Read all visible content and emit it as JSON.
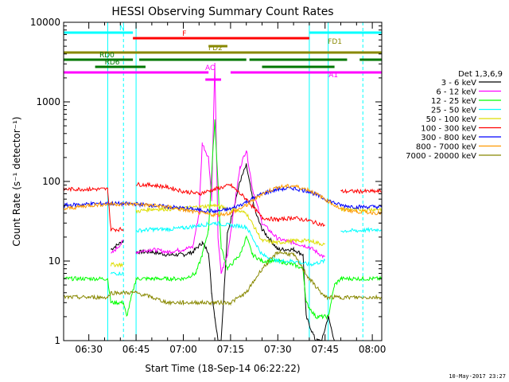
{
  "chart_data": {
    "type": "line",
    "title": "HESSI Observing Summary Count Rates",
    "xlabel": "Start Time (18-Sep-14 06:22:22)",
    "ylabel": "Count Rate (s⁻¹ detector⁻¹)",
    "yscale": "log",
    "ylim": [
      1,
      10000
    ],
    "xlim": [
      "06:22",
      "08:03"
    ],
    "x_ticks": [
      "06:30",
      "06:45",
      "07:00",
      "07:15",
      "07:30",
      "07:45",
      "08:00"
    ],
    "y_ticks": [
      "1",
      "10",
      "100",
      "1000",
      "10000"
    ],
    "legend_title": "Det 1,3,6,9",
    "legend_position": "right",
    "timestamp": "10-May-2017 23:27",
    "series": [
      {
        "name": "3 - 6 keV",
        "color": "#000000",
        "x": [
          "06:22",
          "06:36",
          "06:37",
          "06:41",
          "06:42",
          "06:45",
          "06:50",
          "06:55",
          "07:00",
          "07:03",
          "07:06",
          "07:08",
          "07:09",
          "07:10",
          "07:11",
          "07:12",
          "07:14",
          "07:18",
          "07:20",
          "07:22",
          "07:23",
          "07:25",
          "07:30",
          "07:35",
          "07:38",
          "07:39",
          "07:42",
          "07:44",
          "07:46",
          "07:48",
          "07:50",
          "07:55",
          "08:03"
        ],
        "y": [
          null,
          null,
          14,
          18,
          null,
          13,
          13,
          12,
          12,
          13,
          17,
          13,
          4,
          2,
          1,
          1,
          22,
          100,
          160,
          60,
          40,
          25,
          14,
          14,
          12,
          2,
          1,
          1,
          2,
          1,
          null,
          null,
          null
        ]
      },
      {
        "name": "6 - 12 keV",
        "color": "#ff00ff",
        "x": [
          "06:22",
          "06:36",
          "06:37",
          "06:41",
          "06:42",
          "06:45",
          "06:50",
          "06:55",
          "07:00",
          "07:03",
          "07:05",
          "07:06",
          "07:08",
          "07:09",
          "07:10",
          "07:11",
          "07:12",
          "07:14",
          "07:18",
          "07:20",
          "07:22",
          "07:25",
          "07:30",
          "07:35",
          "07:40",
          "07:45",
          "07:50",
          "07:55",
          "08:03"
        ],
        "y": [
          null,
          null,
          12,
          18,
          null,
          13,
          14,
          13,
          14,
          15,
          40,
          300,
          200,
          60,
          3000,
          20,
          7,
          12,
          150,
          250,
          80,
          30,
          19,
          17,
          15,
          11,
          null,
          null,
          null
        ]
      },
      {
        "name": "12 - 25 keV",
        "color": "#00ff00",
        "x": [
          "06:22",
          "06:36",
          "06:37",
          "06:41",
          "06:42",
          "06:45",
          "06:50",
          "06:55",
          "07:00",
          "07:04",
          "07:06",
          "07:08",
          "07:10",
          "07:12",
          "07:14",
          "07:18",
          "07:20",
          "07:22",
          "07:25",
          "07:30",
          "07:35",
          "07:38",
          "07:39",
          "07:42",
          "07:46",
          "07:48",
          "07:50",
          "07:55",
          "08:03"
        ],
        "y": [
          6,
          6,
          3,
          3,
          2,
          6,
          6,
          6,
          6,
          7,
          12,
          25,
          600,
          15,
          8,
          12,
          20,
          12,
          10,
          10,
          9,
          8,
          3,
          2,
          2,
          5,
          6,
          6,
          6
        ]
      },
      {
        "name": "25 - 50 keV",
        "color": "#00ffff",
        "x": [
          "06:22",
          "06:36",
          "06:37",
          "06:41",
          "06:42",
          "06:45",
          "06:50",
          "06:55",
          "07:00",
          "07:05",
          "07:10",
          "07:15",
          "07:20",
          "07:25",
          "07:30",
          "07:35",
          "07:40",
          "07:45",
          "07:46",
          "07:50",
          "07:55",
          "08:03"
        ],
        "y": [
          null,
          null,
          7,
          7,
          null,
          24,
          25,
          25,
          26,
          28,
          30,
          28,
          27,
          12,
          10,
          10,
          9,
          10,
          null,
          24,
          24,
          25
        ]
      },
      {
        "name": "50 - 100 keV",
        "color": "#dddd00",
        "x": [
          "06:22",
          "06:36",
          "06:37",
          "06:41",
          "06:42",
          "06:45",
          "06:50",
          "06:55",
          "07:00",
          "07:05",
          "07:10",
          "07:15",
          "07:20",
          "07:25",
          "07:30",
          "07:35",
          "07:40",
          "07:45",
          "07:46",
          "07:50",
          "07:55",
          "08:03"
        ],
        "y": [
          null,
          null,
          9,
          9,
          null,
          42,
          45,
          45,
          46,
          48,
          50,
          45,
          40,
          18,
          17,
          18,
          18,
          16,
          null,
          45,
          44,
          45
        ]
      },
      {
        "name": "100 - 300 keV",
        "color": "#ff0000",
        "x": [
          "06:22",
          "06:30",
          "06:36",
          "06:37",
          "06:41",
          "06:42",
          "06:45",
          "06:50",
          "06:55",
          "07:00",
          "07:05",
          "07:10",
          "07:15",
          "07:20",
          "07:25",
          "07:30",
          "07:35",
          "07:40",
          "07:45",
          "07:46",
          "07:50",
          "07:55",
          "08:03"
        ],
        "y": [
          80,
          80,
          80,
          25,
          25,
          null,
          92,
          90,
          85,
          75,
          70,
          80,
          90,
          60,
          35,
          33,
          35,
          32,
          28,
          null,
          75,
          75,
          75
        ]
      },
      {
        "name": "300 - 800 keV",
        "color": "#0000ff",
        "x": [
          "06:22",
          "06:30",
          "06:36",
          "06:45",
          "06:50",
          "06:55",
          "07:00",
          "07:05",
          "07:10",
          "07:15",
          "07:20",
          "07:25",
          "07:30",
          "07:35",
          "07:40",
          "07:45",
          "07:50",
          "07:55",
          "08:03"
        ],
        "y": [
          50,
          52,
          53,
          52,
          50,
          48,
          46,
          44,
          42,
          45,
          55,
          70,
          80,
          82,
          75,
          60,
          50,
          48,
          48
        ]
      },
      {
        "name": "800 - 7000 keV",
        "color": "#ff9900",
        "x": [
          "06:22",
          "06:30",
          "06:36",
          "06:45",
          "06:50",
          "06:55",
          "07:00",
          "07:05",
          "07:10",
          "07:15",
          "07:20",
          "07:25",
          "07:30",
          "07:35",
          "07:40",
          "07:45",
          "07:50",
          "07:55",
          "08:03"
        ],
        "y": [
          45,
          50,
          52,
          52,
          50,
          48,
          44,
          40,
          38,
          40,
          50,
          70,
          85,
          88,
          78,
          60,
          45,
          42,
          40
        ]
      },
      {
        "name": "7000 - 20000 keV",
        "color": "#888800",
        "x": [
          "06:22",
          "06:30",
          "06:36",
          "06:37",
          "06:45",
          "06:50",
          "06:55",
          "07:00",
          "07:05",
          "07:10",
          "07:15",
          "07:20",
          "07:25",
          "07:30",
          "07:35",
          "07:40",
          "07:45",
          "07:50",
          "07:55",
          "08:03"
        ],
        "y": [
          3.5,
          3.5,
          3.5,
          4,
          4,
          3.5,
          3,
          3,
          3,
          3,
          3,
          4,
          8,
          13,
          12,
          6,
          3.5,
          3.5,
          3.5,
          3.5
        ]
      }
    ],
    "flag_bars": [
      {
        "label": "N",
        "color": "#00ffff",
        "intervals": [
          [
            "06:22",
            "06:44"
          ],
          [
            "07:40",
            "08:03"
          ]
        ]
      },
      {
        "label": "F",
        "color": "#ff0000",
        "intervals": [
          [
            "06:44",
            "07:40"
          ]
        ]
      },
      {
        "label": "FD1",
        "color": "#888800",
        "intervals": [
          [
            "07:08",
            "07:14"
          ]
        ]
      },
      {
        "label": "FD2",
        "color": "#888800",
        "intervals": [
          [
            "06:22",
            "08:03"
          ]
        ]
      },
      {
        "label": "RD0",
        "color": "#007700",
        "intervals": [
          [
            "06:22",
            "06:44"
          ],
          [
            "06:46",
            "07:20"
          ],
          [
            "07:21",
            "07:52"
          ],
          [
            "07:56",
            "08:03"
          ]
        ]
      },
      {
        "label": "RD6",
        "color": "#007700",
        "intervals": [
          [
            "06:32",
            "06:48"
          ],
          [
            "07:25",
            "07:48"
          ]
        ]
      },
      {
        "label": "AO",
        "color": "#ff00ff",
        "intervals": [
          [
            "06:22",
            "07:08"
          ],
          [
            "07:15",
            "08:03"
          ]
        ]
      },
      {
        "label": "A1",
        "color": "#ff00ff",
        "intervals": [
          [
            "07:07",
            "07:12"
          ]
        ]
      }
    ],
    "vertical_markers": {
      "color": "#00ffff",
      "solid": [
        "06:22",
        "06:36",
        "06:45",
        "07:40",
        "07:46",
        "08:03"
      ],
      "dashed": [
        "06:41",
        "07:57"
      ]
    }
  }
}
